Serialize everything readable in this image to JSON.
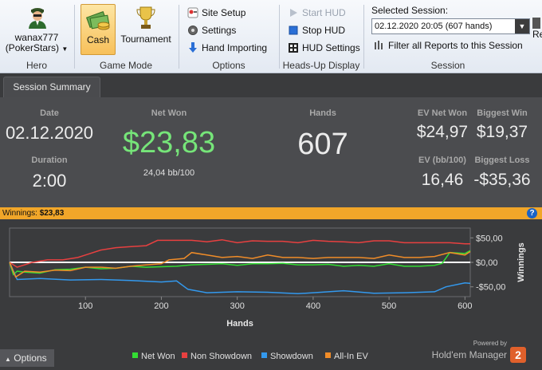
{
  "ribbon": {
    "hero": {
      "name": "wanax777",
      "site": "(PokerStars)",
      "label": "Hero"
    },
    "game_mode": {
      "cash": "Cash",
      "tournament": "Tournament",
      "label": "Game Mode"
    },
    "options": {
      "site_setup": "Site Setup",
      "settings": "Settings",
      "hand_importing": "Hand Importing",
      "label": "Options"
    },
    "hud": {
      "start": "Start HUD",
      "stop": "Stop HUD",
      "settings": "HUD Settings",
      "label": "Heads-Up Display"
    },
    "session": {
      "title": "Selected Session:",
      "value": "02.12.2020 20:05 (607 hands)",
      "filter": "Filter all Reports to this Session",
      "label": "Session",
      "extra": "Re"
    }
  },
  "tab": {
    "label": "Session Summary"
  },
  "summary": {
    "date_label": "Date",
    "date": "02.12.2020",
    "duration_label": "Duration",
    "duration": "2:00",
    "net_won_label": "Net Won",
    "net_won": "$23,83",
    "bb100": "24,04 bb/100",
    "hands_label": "Hands",
    "hands": "607",
    "ev_net_won_label": "EV Net Won",
    "ev_net_won": "$24,97",
    "ev_bb100_label": "EV (bb/100)",
    "ev_bb100": "16,46",
    "biggest_win_label": "Biggest Win",
    "biggest_win": "$19,37",
    "biggest_loss_label": "Biggest Loss",
    "biggest_loss": "-$35,36"
  },
  "winnings_bar": {
    "label": "Winnings:",
    "value": "$23,83",
    "help": "?"
  },
  "options_label": "Options",
  "options_caret": "▲",
  "brand": {
    "powered": "Powered by",
    "name": "Hold'em Manager",
    "badge": "2"
  },
  "colors": {
    "net_won": "#33dd33",
    "non_showdown": "#e84040",
    "showdown": "#3399ee",
    "allin_ev": "#f08c28"
  },
  "chart_data": {
    "type": "line",
    "xlabel": "Hands",
    "ylabel": "Winnings",
    "xlim": [
      0,
      607
    ],
    "ylim": [
      -70,
      70
    ],
    "x_ticks": [
      100,
      200,
      300,
      400,
      500,
      600
    ],
    "y_ticks": [
      {
        "v": 50,
        "label": "$50,00"
      },
      {
        "v": 0,
        "label": "$0,00"
      },
      {
        "v": -50,
        "label": "-$50,00"
      }
    ],
    "legend_position": "bottom",
    "series": [
      {
        "name": "Net Won",
        "color": "#33dd33",
        "x": [
          0,
          5,
          10,
          20,
          40,
          60,
          80,
          100,
          120,
          140,
          160,
          180,
          200,
          220,
          240,
          260,
          280,
          300,
          320,
          340,
          360,
          380,
          400,
          420,
          440,
          460,
          480,
          500,
          520,
          540,
          560,
          570,
          580,
          600,
          607
        ],
        "y": [
          0,
          -25,
          -18,
          -20,
          -22,
          -15,
          -14,
          -10,
          -13,
          -12,
          -8,
          -10,
          -9,
          -8,
          -5,
          -4,
          -3,
          -6,
          -3,
          -3,
          -2,
          -5,
          -5,
          -4,
          -8,
          -6,
          -8,
          -3,
          -8,
          -8,
          -6,
          -2,
          20,
          18,
          24
        ]
      },
      {
        "name": "Non Showdown",
        "color": "#e84040",
        "x": [
          0,
          10,
          30,
          50,
          70,
          90,
          100,
          120,
          140,
          160,
          180,
          195,
          210,
          240,
          260,
          280,
          300,
          320,
          340,
          360,
          380,
          400,
          420,
          440,
          460,
          480,
          500,
          520,
          540,
          560,
          580,
          600,
          607
        ],
        "y": [
          0,
          -10,
          0,
          5,
          5,
          10,
          15,
          25,
          30,
          32,
          34,
          45,
          45,
          45,
          42,
          46,
          40,
          44,
          43,
          43,
          40,
          45,
          43,
          42,
          40,
          44,
          44,
          40,
          40,
          40,
          40,
          38,
          38
        ]
      },
      {
        "name": "Showdown",
        "color": "#3399ee",
        "x": [
          0,
          10,
          40,
          80,
          120,
          160,
          200,
          220,
          235,
          260,
          300,
          340,
          380,
          400,
          440,
          480,
          520,
          560,
          575,
          600,
          607
        ],
        "y": [
          0,
          -35,
          -33,
          -36,
          -35,
          -37,
          -40,
          -38,
          -55,
          -62,
          -60,
          -61,
          -64,
          -62,
          -58,
          -63,
          -62,
          -60,
          -50,
          -42,
          -43
        ]
      },
      {
        "name": "All-In EV",
        "color": "#f08c28",
        "x": [
          0,
          8,
          20,
          40,
          60,
          80,
          100,
          120,
          140,
          160,
          180,
          200,
          210,
          230,
          240,
          260,
          280,
          300,
          320,
          340,
          360,
          380,
          400,
          420,
          440,
          460,
          480,
          500,
          520,
          540,
          560,
          580,
          600,
          607
        ],
        "y": [
          0,
          -30,
          -18,
          -20,
          -16,
          -17,
          -10,
          -10,
          -12,
          -8,
          -5,
          -3,
          5,
          8,
          20,
          15,
          10,
          12,
          8,
          15,
          10,
          10,
          8,
          10,
          10,
          10,
          8,
          15,
          10,
          10,
          12,
          20,
          15,
          22
        ]
      }
    ]
  }
}
